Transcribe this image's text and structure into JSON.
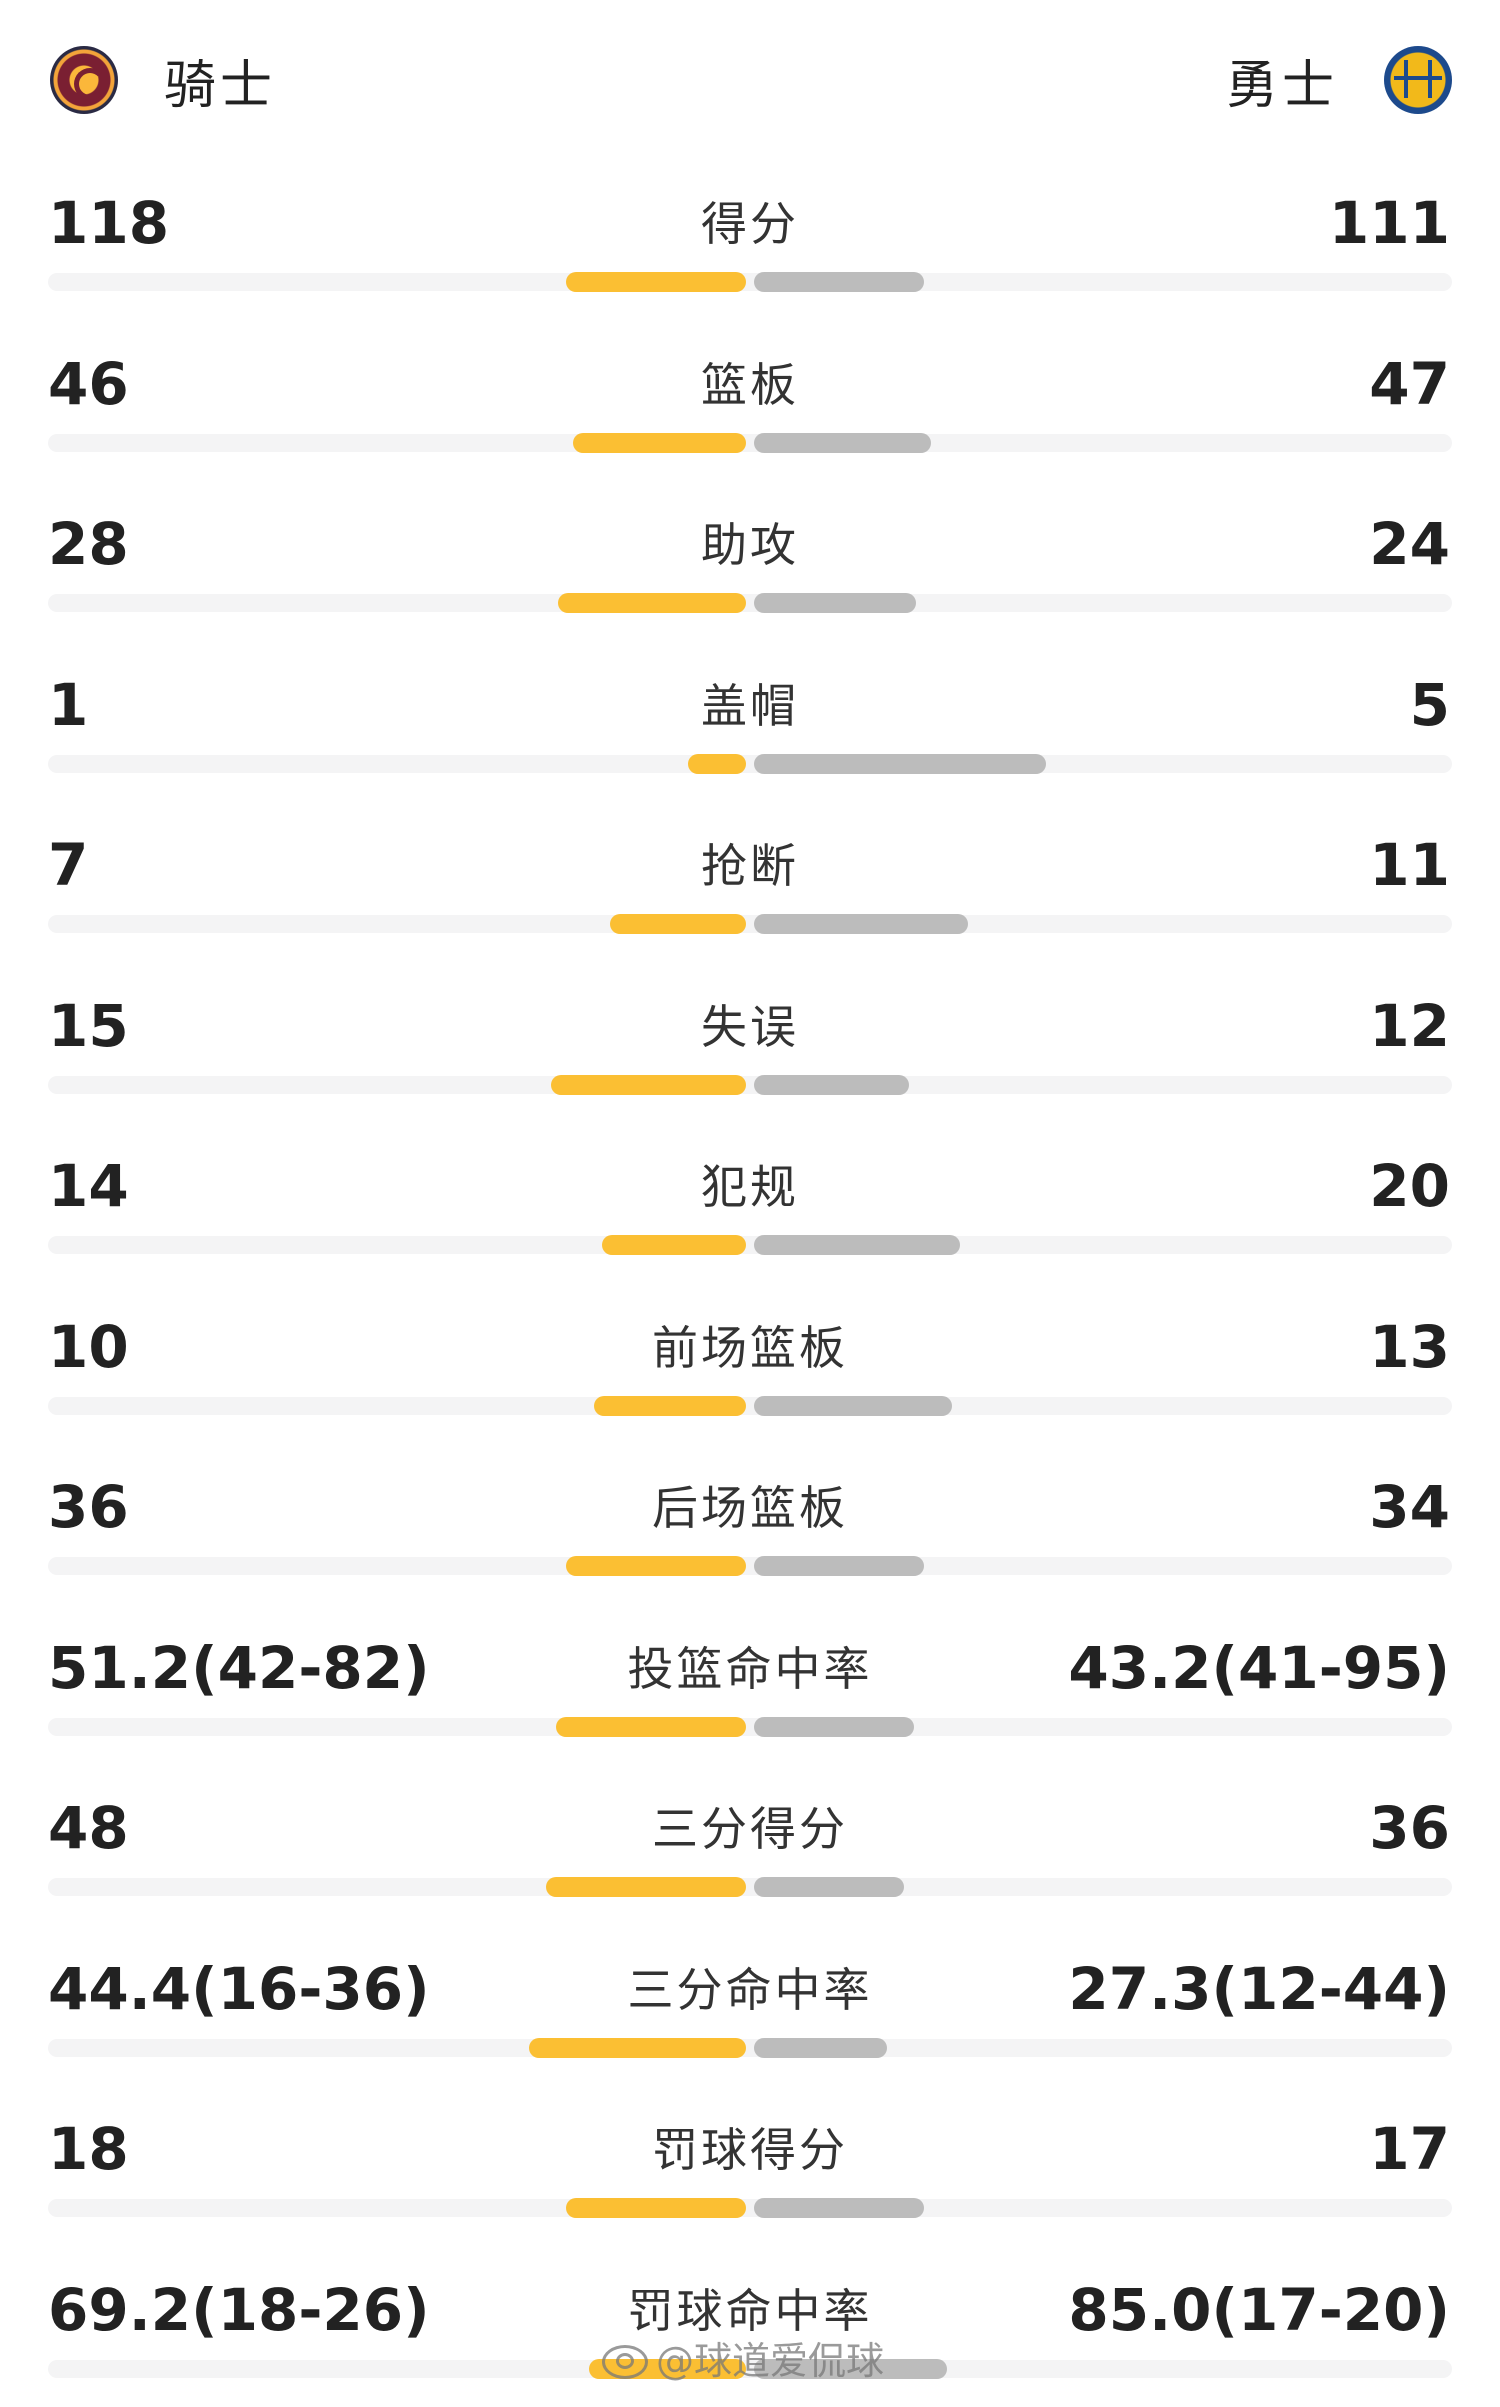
{
  "header": {
    "home_team": "骑士",
    "away_team": "勇士",
    "home_logo_icon": "cavaliers-logo-icon",
    "away_logo_icon": "warriors-logo-icon"
  },
  "colors": {
    "home_bar": "#fbbf33",
    "away_bar": "#bcbcbc",
    "track": "#f4f4f5"
  },
  "stats": [
    {
      "label": "得分",
      "home": "118",
      "away": "111",
      "home_share": 0.515,
      "away_share": 0.485
    },
    {
      "label": "篮板",
      "home": "46",
      "away": "47",
      "home_share": 0.495,
      "away_share": 0.505
    },
    {
      "label": "助攻",
      "home": "28",
      "away": "24",
      "home_share": 0.538,
      "away_share": 0.462
    },
    {
      "label": "盖帽",
      "home": "1",
      "away": "5",
      "home_share": 0.167,
      "away_share": 0.833
    },
    {
      "label": "抢断",
      "home": "7",
      "away": "11",
      "home_share": 0.389,
      "away_share": 0.611
    },
    {
      "label": "失误",
      "home": "15",
      "away": "12",
      "home_share": 0.556,
      "away_share": 0.444
    },
    {
      "label": "犯规",
      "home": "14",
      "away": "20",
      "home_share": 0.412,
      "away_share": 0.588
    },
    {
      "label": "前场篮板",
      "home": "10",
      "away": "13",
      "home_share": 0.435,
      "away_share": 0.565
    },
    {
      "label": "后场篮板",
      "home": "36",
      "away": "34",
      "home_share": 0.514,
      "away_share": 0.486
    },
    {
      "label": "投篮命中率",
      "home": "51.2(42-82)",
      "away": "43.2(41-95)",
      "home_share": 0.542,
      "away_share": 0.458
    },
    {
      "label": "三分得分",
      "home": "48",
      "away": "36",
      "home_share": 0.571,
      "away_share": 0.429
    },
    {
      "label": "三分命中率",
      "home": "44.4(16-36)",
      "away": "27.3(12-44)",
      "home_share": 0.619,
      "away_share": 0.381
    },
    {
      "label": "罚球得分",
      "home": "18",
      "away": "17",
      "home_share": 0.514,
      "away_share": 0.486
    },
    {
      "label": "罚球命中率",
      "home": "69.2(18-26)",
      "away": "85.0(17-20)",
      "home_share": 0.449,
      "away_share": 0.551
    }
  ],
  "watermark": {
    "icon": "weibo-icon",
    "text": "@球道爱侃球"
  }
}
